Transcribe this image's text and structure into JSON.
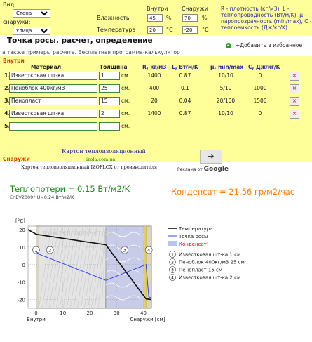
{
  "top": {
    "vid_label": "Вид:",
    "inside_select": "Стена",
    "outside_label": "снаружи:",
    "outside_select": "Улица",
    "col_inside": "Внутри",
    "col_outside": "Снаружи",
    "humidity_label": "Влажность",
    "temperature_label": "Температура",
    "hum_in": "45",
    "hum_out": "70",
    "hum_unit": "%",
    "temp_in": "20",
    "temp_out": "-20",
    "temp_unit": "°C",
    "legend_text": "R - плотность (кг/м3), L - теплопроводность (Вт/м/K), μ - паропрозрачность (min/max), C - теплоемкость (Дж/кг/K)"
  },
  "title": "Точка росы. расчет, определение",
  "subtitle": "а также примеры расчета. Бесплатная программа-калькулятор",
  "add_favorites": "+Добавить в избранное",
  "table": {
    "inside_label": "Внутри",
    "outside_label": "Снаружи",
    "headers": {
      "material": "Материал",
      "thickness": "Толщина",
      "r": "R, кг/м3",
      "l": "L, Вт/м/K",
      "mu": "μ, min/max",
      "c": "C, Дж/кг/K"
    },
    "unit": "см.",
    "del": "×",
    "rows": [
      {
        "num": "1.",
        "material": "Известковая шт-ка",
        "thickness": "1",
        "r": "1400",
        "l": "0.87",
        "mu": "10/10",
        "c": "0"
      },
      {
        "num": "2.",
        "material": "Пеноблок 400кг/м3",
        "thickness": "25",
        "r": "400",
        "l": "0.1",
        "mu": "5/10",
        "c": "1000"
      },
      {
        "num": "3.",
        "material": "Пенопласт",
        "thickness": "15",
        "r": "20",
        "l": "0.04",
        "mu": "20/100",
        "c": "1500"
      },
      {
        "num": "4.",
        "material": "Известковая шт-ка",
        "thickness": "2",
        "r": "1400",
        "l": "0.87",
        "mu": "10/10",
        "c": "0"
      },
      {
        "num": "5.",
        "material": "",
        "thickness": "",
        "r": "",
        "l": "",
        "mu": "",
        "c": ""
      }
    ]
  },
  "ad": {
    "title": "Картон теплоизоляционный",
    "url": "izola.com.ua",
    "text": "Картон теплоизоляционный IZOFLOX от производителя",
    "arrow": "➜",
    "rek_prefix": "Реклама от",
    "rek_brand": "Google"
  },
  "results": {
    "heat_loss": "Теплопотери = 0.15 Вт/м2/K",
    "norm": "EnEV2009* U<0.24 Вт/м2/K",
    "condensate": "Конденсат = 21.56 гр/м2/час"
  },
  "chart": {
    "unit_label": "[°C]",
    "watermark": "www.теплорасчет.рф",
    "x_left_label": "Внутри",
    "x_right_label": "Снаружи [см]",
    "legend": {
      "temperature": "Температура",
      "dew_point": "Точка росы",
      "condensate": "Конденсат!",
      "layer1": "Известковая шт-ка 1 см",
      "layer2": "Пеноблок 400кг/м3 25 см",
      "layer3": "Пенопласт 15 см",
      "layer4": "Известковая шт-ка 2 см"
    },
    "colors": {
      "temperature": "#111111",
      "dew_point": "#3344ee",
      "condensate": "#b8c4f4",
      "foam_layer": "#c9cce8",
      "plaster_layer": "#d8d4c8"
    }
  },
  "chart_data": {
    "type": "line",
    "x_ticks": [
      0,
      10,
      20,
      30,
      40
    ],
    "y_ticks": [
      20,
      10,
      0,
      -10,
      -20
    ],
    "xlim": [
      -3,
      43
    ],
    "ylim": [
      -25,
      22
    ],
    "layers": [
      {
        "name": "1",
        "from": 0,
        "to": 1
      },
      {
        "name": "2",
        "from": 1,
        "to": 26
      },
      {
        "name": "3",
        "from": 26,
        "to": 41
      },
      {
        "name": "4",
        "from": 41,
        "to": 43
      }
    ],
    "series": [
      {
        "name": "Температура",
        "x": [
          -3,
          0,
          1,
          26,
          41,
          43
        ],
        "y": [
          20,
          17.4,
          17.1,
          11.3,
          -19.6,
          -20
        ]
      },
      {
        "name": "Точка росы",
        "x": [
          0,
          1,
          26,
          41,
          42,
          43
        ],
        "y": [
          7.6,
          6,
          -9,
          0,
          -18.5,
          -19
        ]
      }
    ],
    "condensate_zone": [
      40.5,
      41
    ]
  }
}
